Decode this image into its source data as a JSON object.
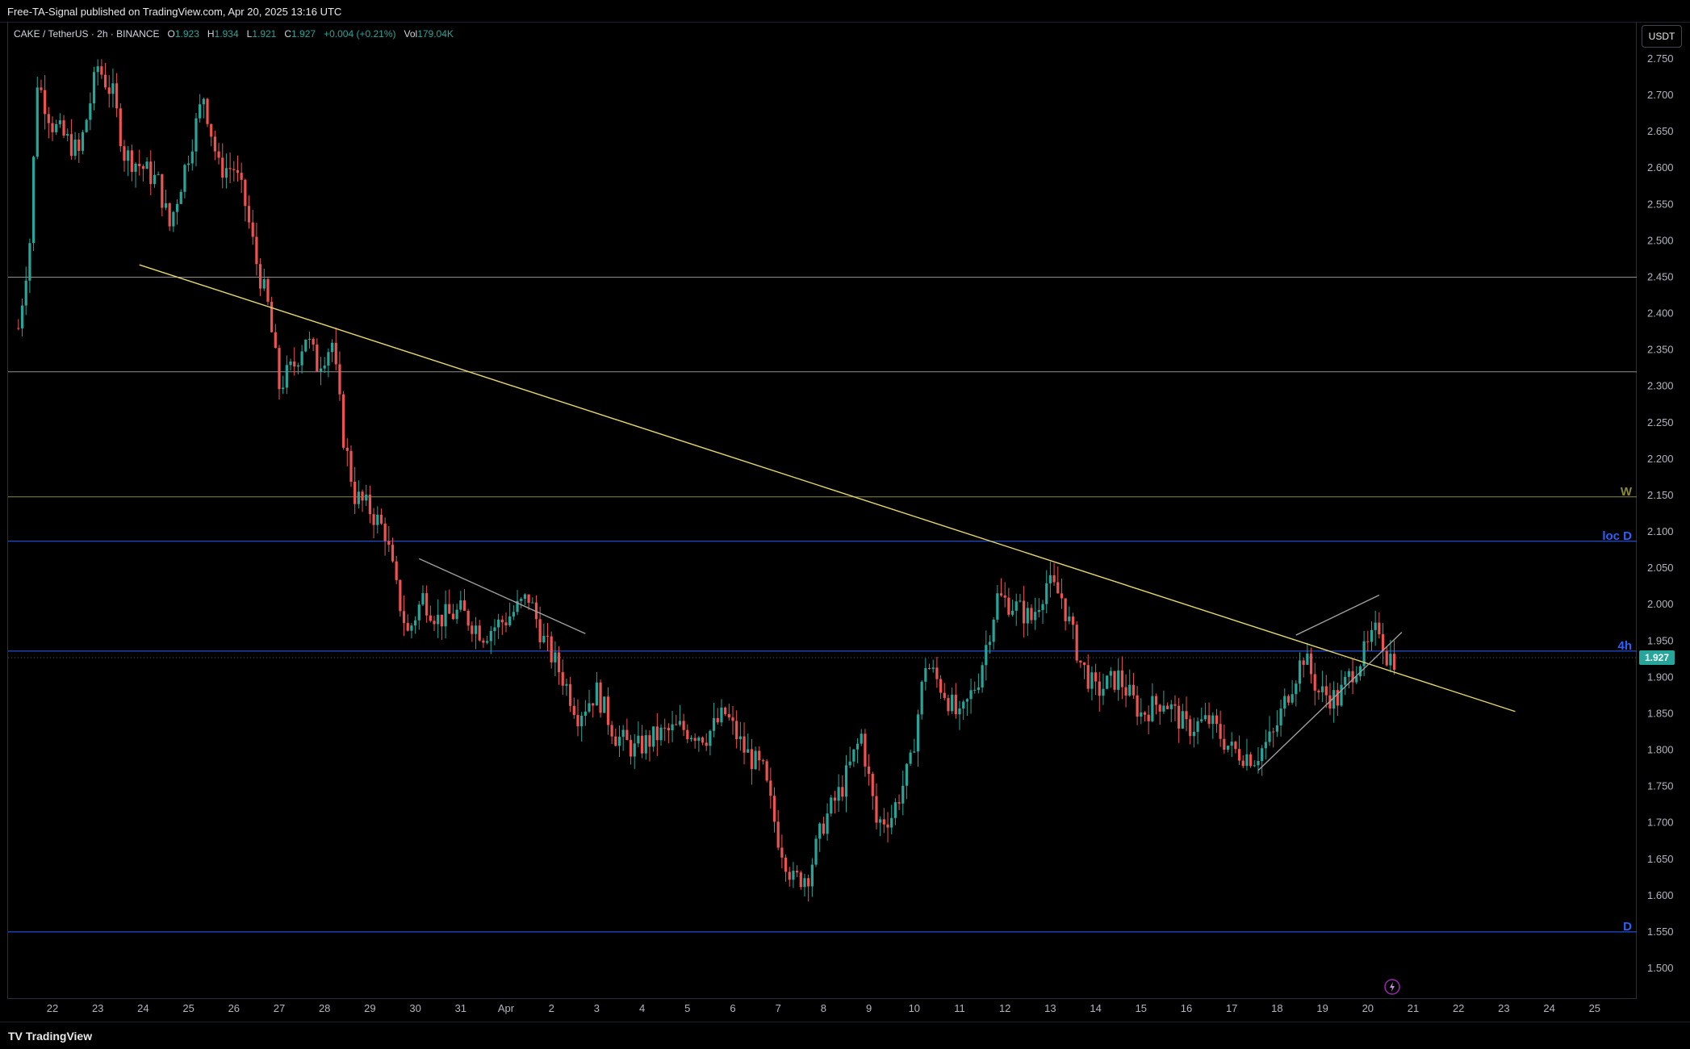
{
  "header": {
    "published": "Free-TA-Signal published on TradingView.com, Apr 20, 2025 13:16 UTC"
  },
  "legend": {
    "symbol": "CAKE / TetherUS · 2h · BINANCE",
    "o_label": "O",
    "o_value": "1.923",
    "h_label": "H",
    "h_value": "1.934",
    "l_label": "L",
    "l_value": "1.921",
    "c_label": "C",
    "c_value": "1.927",
    "change": "+0.004 (+0.21%)",
    "vol_label": "Vol",
    "vol_value": "179.04K"
  },
  "currency_button": "USDT",
  "footer": {
    "brand": "TradingView",
    "mark": "TV"
  },
  "colors": {
    "background": "#000000",
    "up": "#26a69a",
    "down": "#ef5350",
    "trendline": "#e6d86b",
    "level_blue": "#2962ff",
    "level_olive": "#8a8a3a",
    "level_grey": "#9e9e9e",
    "price_tag": "#26a69a"
  },
  "icons": {
    "replay": "lightning-icon"
  },
  "chart_data": {
    "type": "candlestick",
    "title": "CAKE / TetherUS · 2h · BINANCE",
    "y_axis": {
      "ylim": [
        1.5,
        2.75
      ],
      "ticks": [
        "2.750",
        "2.700",
        "2.650",
        "2.600",
        "2.550",
        "2.500",
        "2.450",
        "2.400",
        "2.350",
        "2.300",
        "2.250",
        "2.200",
        "2.150",
        "2.100",
        "2.050",
        "2.000",
        "1.950",
        "1.900",
        "1.850",
        "1.800",
        "1.750",
        "1.700",
        "1.650",
        "1.600",
        "1.550",
        "1.500"
      ]
    },
    "x_axis": {
      "ticks": [
        "22",
        "23",
        "24",
        "25",
        "26",
        "27",
        "28",
        "29",
        "30",
        "31",
        "Apr",
        "2",
        "3",
        "4",
        "5",
        "6",
        "7",
        "8",
        "9",
        "10",
        "11",
        "12",
        "13",
        "14",
        "15",
        "16",
        "17",
        "18",
        "19",
        "20",
        "21",
        "22",
        "23",
        "24",
        "25"
      ]
    },
    "last_price": "1.927",
    "horizontal_levels": [
      {
        "price": 2.45,
        "label": "",
        "color": "#8f8f8f"
      },
      {
        "price": 2.32,
        "label": "",
        "color": "#8f8f8f"
      },
      {
        "price": 2.148,
        "label": "W",
        "color": "#8a8a3a"
      },
      {
        "price": 2.087,
        "label": "loc D",
        "color": "#2962ff"
      },
      {
        "price": 1.936,
        "label": "4h",
        "color": "#2962ff"
      },
      {
        "price": 1.55,
        "label": "D",
        "color": "#2962ff"
      }
    ],
    "trendlines": [
      {
        "from": [
          "Mar 23 22:00",
          2.467
        ],
        "to": [
          "Apr 23 06:00",
          1.853
        ],
        "color": "#e6d86b"
      },
      {
        "from": [
          "Mar 30 02:00",
          2.063
        ],
        "to": [
          "Apr 2 18:00",
          1.96
        ],
        "color": "#9e9e9e"
      },
      {
        "from": [
          "Apr 17 14:00",
          1.772
        ],
        "to": [
          "Apr 20 18:00",
          1.962
        ],
        "color": "#9e9e9e"
      },
      {
        "from": [
          "Apr 18 10:00",
          1.958
        ],
        "to": [
          "Apr 20 06:00",
          2.013
        ],
        "color": "#9e9e9e"
      }
    ],
    "price_path": [
      [
        "Mar 21 06:00",
        2.38
      ],
      [
        "Mar 21 12:00",
        2.5
      ],
      [
        "Mar 21 16:00",
        2.72
      ],
      [
        "Mar 22 00:00",
        2.66
      ],
      [
        "Mar 22 14:00",
        2.62
      ],
      [
        "Mar 23 00:00",
        2.74
      ],
      [
        "Mar 23 08:00",
        2.7
      ],
      [
        "Mar 23 14:00",
        2.62
      ],
      [
        "Mar 24 00:00",
        2.6
      ],
      [
        "Mar 24 08:00",
        2.58
      ],
      [
        "Mar 24 14:00",
        2.52
      ],
      [
        "Mar 25 00:00",
        2.62
      ],
      [
        "Mar 25 08:00",
        2.7
      ],
      [
        "Mar 25 16:00",
        2.6
      ],
      [
        "Mar 26 00:00",
        2.6
      ],
      [
        "Mar 26 06:00",
        2.55
      ],
      [
        "Mar 26 12:00",
        2.47
      ],
      [
        "Mar 26 18:00",
        2.41
      ],
      [
        "Mar 27 00:00",
        2.3
      ],
      [
        "Mar 27 08:00",
        2.33
      ],
      [
        "Mar 27 14:00",
        2.37
      ],
      [
        "Mar 27 20:00",
        2.33
      ],
      [
        "Mar 28 04:00",
        2.36
      ],
      [
        "Mar 28 10:00",
        2.23
      ],
      [
        "Mar 28 16:00",
        2.15
      ],
      [
        "Mar 29 00:00",
        2.13
      ],
      [
        "Mar 29 08:00",
        2.1
      ],
      [
        "Mar 29 14:00",
        2.02
      ],
      [
        "Mar 29 20:00",
        1.96
      ],
      [
        "Mar 30 04:00",
        2.01
      ],
      [
        "Mar 30 12:00",
        1.98
      ],
      [
        "Mar 31 00:00",
        1.99
      ],
      [
        "Mar 31 12:00",
        1.96
      ],
      [
        "Apr 1 00:00",
        1.98
      ],
      [
        "Apr 1 12:00",
        2.01
      ],
      [
        "Apr 1 20:00",
        1.95
      ],
      [
        "Apr 2 06:00",
        1.9
      ],
      [
        "Apr 2 14:00",
        1.85
      ],
      [
        "Apr 3 00:00",
        1.88
      ],
      [
        "Apr 3 10:00",
        1.82
      ],
      [
        "Apr 3 20:00",
        1.8
      ],
      [
        "Apr 4 08:00",
        1.82
      ],
      [
        "Apr 4 20:00",
        1.83
      ],
      [
        "Apr 5 10:00",
        1.82
      ],
      [
        "Apr 5 20:00",
        1.85
      ],
      [
        "Apr 6 06:00",
        1.8
      ],
      [
        "Apr 6 16:00",
        1.77
      ],
      [
        "Apr 7 00:00",
        1.68
      ],
      [
        "Apr 7 08:00",
        1.62
      ],
      [
        "Apr 7 16:00",
        1.63
      ],
      [
        "Apr 8 00:00",
        1.7
      ],
      [
        "Apr 8 10:00",
        1.75
      ],
      [
        "Apr 8 20:00",
        1.82
      ],
      [
        "Apr 9 04:00",
        1.7
      ],
      [
        "Apr 9 12:00",
        1.71
      ],
      [
        "Apr 9 22:00",
        1.78
      ],
      [
        "Apr 10 06:00",
        1.92
      ],
      [
        "Apr 10 16:00",
        1.88
      ],
      [
        "Apr 11 00:00",
        1.84
      ],
      [
        "Apr 11 10:00",
        1.9
      ],
      [
        "Apr 11 20:00",
        2.01
      ],
      [
        "Apr 12 04:00",
        2.0
      ],
      [
        "Apr 12 14:00",
        1.98
      ],
      [
        "Apr 12 22:00",
        2.03
      ],
      [
        "Apr 13 06:00",
        2.01
      ],
      [
        "Apr 13 16:00",
        1.92
      ],
      [
        "Apr 14 00:00",
        1.88
      ],
      [
        "Apr 14 12:00",
        1.9
      ],
      [
        "Apr 15 00:00",
        1.85
      ],
      [
        "Apr 15 12:00",
        1.87
      ],
      [
        "Apr 16 00:00",
        1.83
      ],
      [
        "Apr 16 12:00",
        1.84
      ],
      [
        "Apr 17 00:00",
        1.8
      ],
      [
        "Apr 17 12:00",
        1.79
      ],
      [
        "Apr 17 22:00",
        1.82
      ],
      [
        "Apr 18 06:00",
        1.88
      ],
      [
        "Apr 18 14:00",
        1.93
      ],
      [
        "Apr 18 22:00",
        1.88
      ],
      [
        "Apr 19 08:00",
        1.87
      ],
      [
        "Apr 19 16:00",
        1.91
      ],
      [
        "Apr 20 00:00",
        1.94
      ],
      [
        "Apr 20 06:00",
        1.97
      ],
      [
        "Apr 20 10:00",
        1.93
      ],
      [
        "Apr 20 14:00",
        1.927
      ]
    ]
  }
}
